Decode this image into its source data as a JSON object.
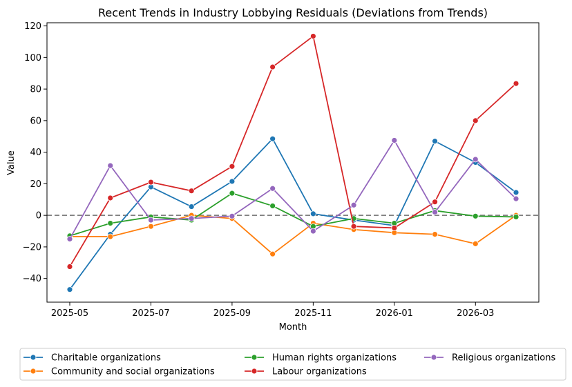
{
  "chart_data": {
    "type": "line",
    "title": "Recent Trends in Industry Lobbying Residuals (Deviations from Trends)",
    "xlabel": "Month",
    "ylabel": "Value",
    "x": [
      "2025-05",
      "2025-06",
      "2025-07",
      "2025-08",
      "2025-09",
      "2025-10",
      "2025-11",
      "2025-12",
      "2026-01",
      "2026-02",
      "2026-03",
      "2026-04"
    ],
    "x_tick_labels": [
      "2025-05",
      "2025-07",
      "2025-09",
      "2025-11",
      "2026-01",
      "2026-03"
    ],
    "ylim": [
      -55,
      122
    ],
    "y_ticks": [
      -40,
      -20,
      0,
      20,
      40,
      60,
      80,
      100,
      120
    ],
    "reference_line": 0,
    "grid": false,
    "legend_position": "bottom, below plot, 3 columns",
    "series": [
      {
        "name": "Charitable organizations",
        "color": "#1f77b4",
        "values": [
          -47,
          -12,
          18,
          5.5,
          21.5,
          48.5,
          1,
          -3,
          -6.5,
          47,
          33.5,
          14.5
        ]
      },
      {
        "name": "Community and social organizations",
        "color": "#ff7f0e",
        "values": [
          -13.5,
          -13.5,
          -7,
          0,
          -2,
          -24.5,
          -5,
          -9,
          -11,
          -12,
          -18,
          0
        ]
      },
      {
        "name": "Human rights organizations",
        "color": "#2ca02c",
        "values": [
          -13,
          -5,
          -1,
          -3,
          14,
          6,
          -7,
          -2,
          -5,
          3,
          -0.5,
          -1
        ]
      },
      {
        "name": "Labour organizations",
        "color": "#d62728",
        "values": [
          -32.5,
          11,
          21,
          15.5,
          31,
          94,
          113.5,
          -7,
          -8,
          8.5,
          60,
          83.5
        ]
      },
      {
        "name": "Religious organizations",
        "color": "#9467bd",
        "values": [
          -15,
          31.5,
          -3,
          -2,
          -0.5,
          17,
          -10,
          6.5,
          47.5,
          2,
          35.5,
          10.5
        ]
      }
    ]
  }
}
